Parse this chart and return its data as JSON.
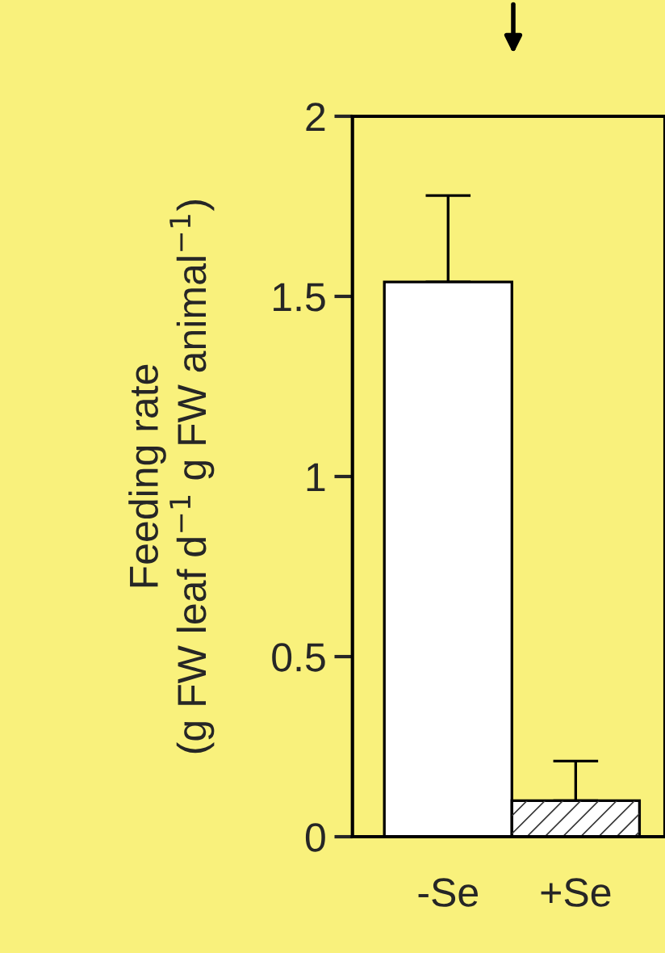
{
  "chart_data": {
    "type": "bar",
    "ylabel": "Feeding rate\n(g FW leaf d$^{−1}$ g FW animal$^{−1}$)",
    "categories": [
      "-Se",
      "+Se"
    ],
    "values": [
      1.54,
      0.1
    ],
    "colors": [
      "#ffffff",
      "#ffffff"
    ],
    "errors": [
      [
        1.54,
        1.78
      ],
      [
        0.1,
        0.21
      ]
    ],
    "ylim": [
      0,
      2
    ],
    "yticks": [
      0,
      0.5,
      1,
      1.5,
      2
    ],
    "grid": false,
    "legend": false
  }
}
